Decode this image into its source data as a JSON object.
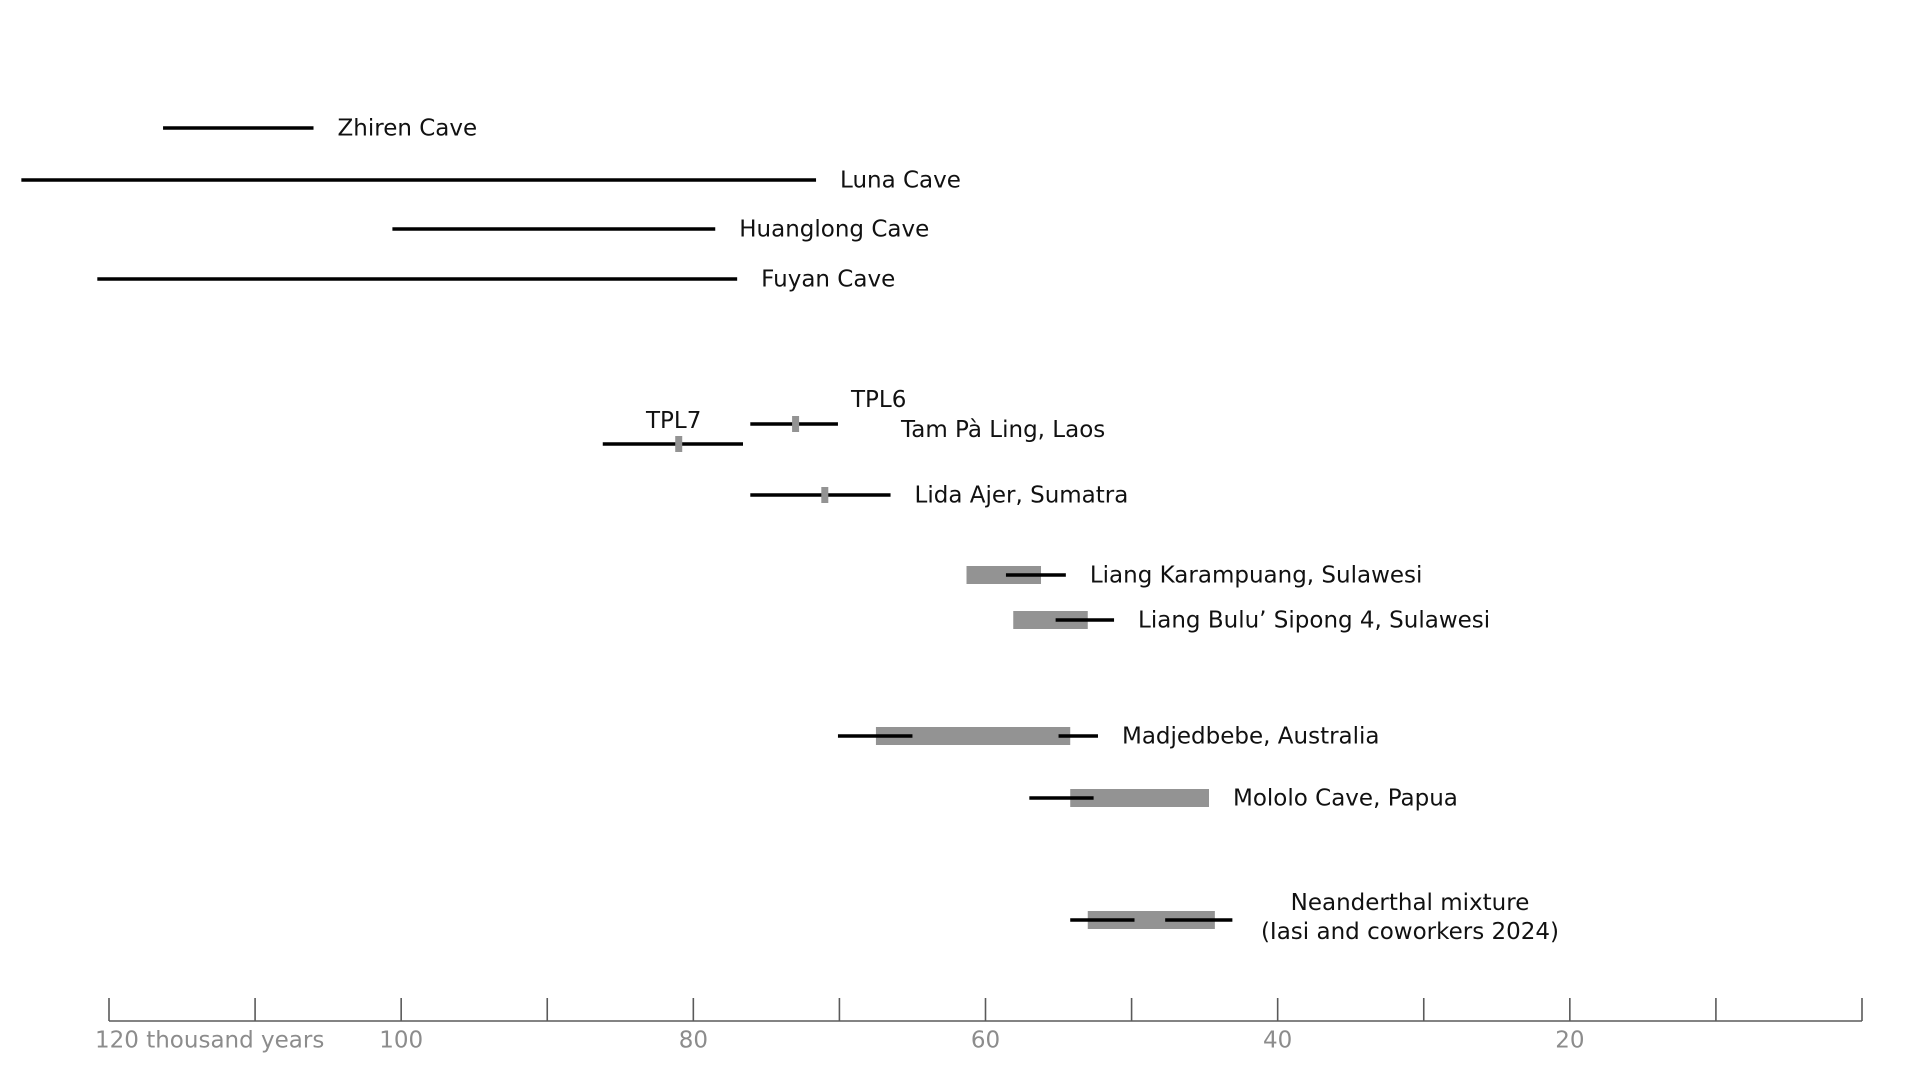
{
  "chart_data": {
    "type": "range-timeline",
    "title": "",
    "xlabel": "",
    "ylabel": "",
    "axis": {
      "unit": "thousand years",
      "direction": "descending",
      "xlim": [
        120,
        0
      ],
      "major_ticks": [
        120,
        110,
        100,
        90,
        80,
        70,
        60,
        50,
        40,
        30,
        20,
        10,
        0
      ],
      "tick_labels": [
        {
          "value": 120,
          "text": "120 thousand years"
        },
        {
          "value": 100,
          "text": "100"
        },
        {
          "value": 80,
          "text": "80"
        },
        {
          "value": 60,
          "text": "60"
        },
        {
          "value": 40,
          "text": "40"
        },
        {
          "value": 20,
          "text": "20"
        }
      ]
    },
    "colors": {
      "range_line": "#000000",
      "estimate_bar": "#939393",
      "axis": "#5a5a5a",
      "tick_label": "#8c8c8c",
      "text": "#111111"
    },
    "legend": "none",
    "grid": false,
    "sites": [
      {
        "id": "zhiren",
        "label": "Zhiren Cave",
        "lines": [
          [
            116.3,
            106
          ]
        ]
      },
      {
        "id": "luna",
        "label": "Luna Cave",
        "lines": [
          [
            126,
            71.6
          ]
        ]
      },
      {
        "id": "huanglong",
        "label": "Huanglong Cave",
        "lines": [
          [
            100.6,
            78.5
          ]
        ]
      },
      {
        "id": "fuyan",
        "label": "Fuyan Cave",
        "lines": [
          [
            120.8,
            77
          ]
        ]
      },
      {
        "id": "tpl7",
        "label": "TPL7",
        "lines": [
          [
            86.2,
            76.6
          ]
        ],
        "markers": [
          81
        ]
      },
      {
        "id": "tpl6",
        "label": "TPL6",
        "lines": [
          [
            76.1,
            70.1
          ]
        ],
        "markers": [
          73
        ]
      },
      {
        "id": "tam-pa-ling",
        "label": "Tam Pà Ling, Laos"
      },
      {
        "id": "lida-ajer",
        "label": "Lida Ajer, Sumatra",
        "lines": [
          [
            76.1,
            66.5
          ]
        ],
        "markers": [
          71
        ]
      },
      {
        "id": "liang-karampuang",
        "label": "Liang Karampuang, Sulawesi",
        "bars": [
          [
            61.3,
            56.2
          ]
        ],
        "lines": [
          [
            58.6,
            54.5
          ]
        ]
      },
      {
        "id": "liang-bulu-sipong",
        "label": "Liang Bulu’ Sipong 4, Sulawesi",
        "bars": [
          [
            58.1,
            53
          ]
        ],
        "lines": [
          [
            55.2,
            51.2
          ]
        ]
      },
      {
        "id": "madjedbebe",
        "label": "Madjedbebe, Australia",
        "bars": [
          [
            67.5,
            54.2
          ]
        ],
        "lines": [
          [
            70.1,
            65
          ],
          [
            55,
            52.3
          ]
        ]
      },
      {
        "id": "mololo",
        "label": "Mololo Cave, Papua",
        "bars": [
          [
            54.2,
            44.7
          ]
        ],
        "lines": [
          [
            57,
            52.6
          ]
        ]
      },
      {
        "id": "neanderthal",
        "label": "Neanderthal mixture (Iasi and coworkers 2024)",
        "label_lines": [
          "Neanderthal mixture",
          "(Iasi and coworkers 2024)"
        ],
        "bars": [
          [
            53,
            44.3
          ]
        ],
        "lines": [
          [
            54.2,
            49.8
          ],
          [
            47.7,
            43.1
          ]
        ]
      }
    ]
  }
}
